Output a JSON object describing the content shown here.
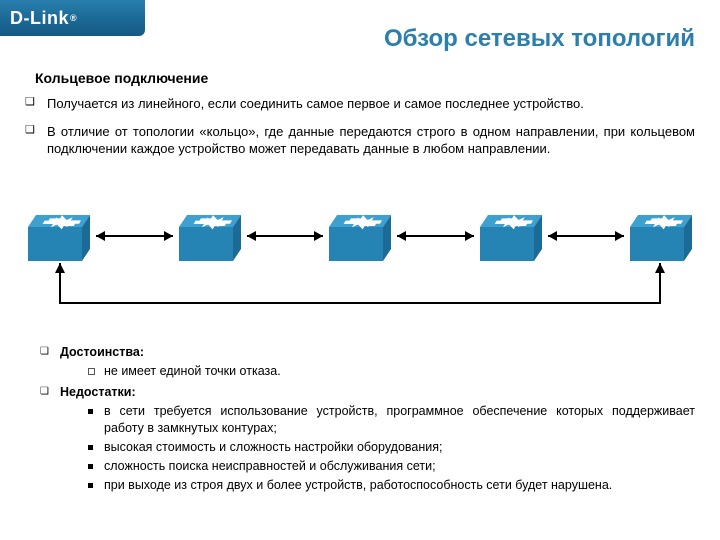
{
  "brand": {
    "name": "D-Link",
    "reg": "®",
    "bar_bg": "#1c6a97",
    "text": "#ffffff"
  },
  "title": {
    "text": "Обзор сетевых топологий",
    "color": "#2a7fae"
  },
  "subtitle": "Кольцевое подключение",
  "intro_bullets": [
    "Получается из линейного, если соединить самое первое и самое последнее устройство.",
    "В отличие от топологии «кольцо», где данные передаются строго в одном направлении, при кольцевом подключении каждое устройство может передавать данные в любом направлении."
  ],
  "diagram": {
    "type": "network",
    "node_count": 5,
    "node_color_top": "#3da0cf",
    "node_color_side": "#1b6b96",
    "node_color_front": "#2684b5",
    "arrow_color": "#000000",
    "ring_line_color": "#000000"
  },
  "advantages": {
    "heading": "Достоинства:",
    "items": [
      "не имеет единой точки отказа."
    ]
  },
  "disadvantages": {
    "heading": "Недостатки:",
    "items": [
      "в сети требуется использование устройств, программное обеспечение которых поддерживает работу в замкнутых контурах;",
      "высокая стоимость и сложность настройки оборудования;",
      "сложность поиска неисправностей и обслуживания сети;",
      "при выходе из строя двух и более устройств, работоспособность сети будет нарушена."
    ]
  }
}
